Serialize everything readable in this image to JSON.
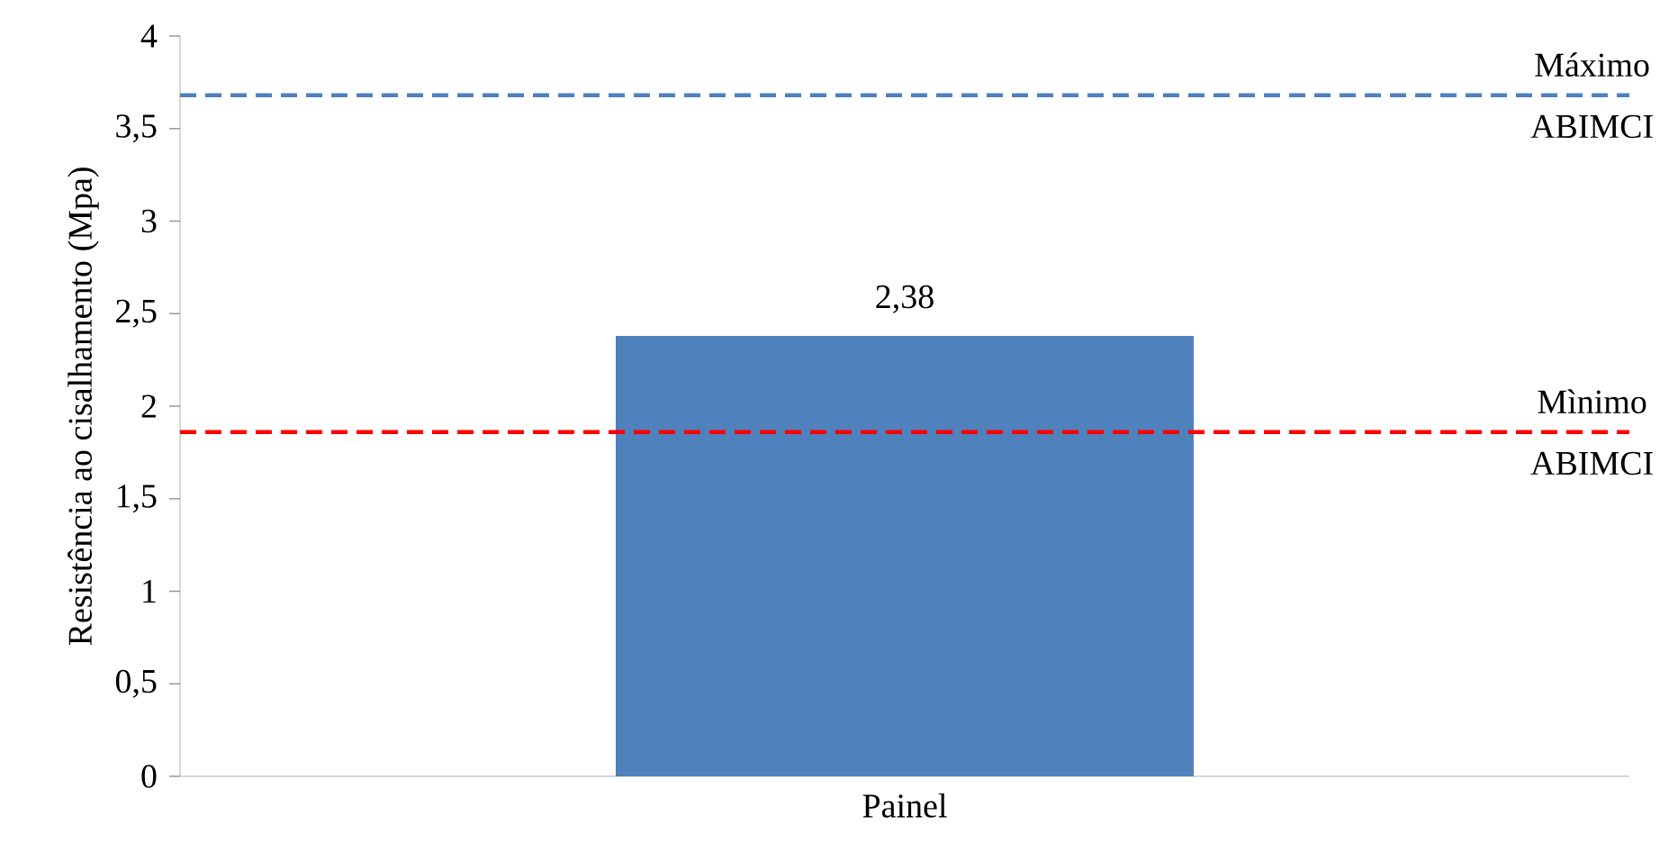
{
  "chart_data": {
    "type": "bar",
    "ylabel": "Resistência ao cisalhamento (Mpa)",
    "categories": [
      "Painel"
    ],
    "values": [
      2.38
    ],
    "value_labels": [
      "2,38"
    ],
    "color": "#4f81bd",
    "ylim": [
      0,
      4
    ],
    "yticks": [
      0,
      {
        "value": 0.5,
        "label": "0,5"
      },
      1,
      {
        "value": 1.5,
        "label": "1,5"
      },
      2,
      {
        "value": 2.5,
        "label": "2,5"
      },
      3,
      {
        "value": 3.5,
        "label": "3,5"
      },
      4
    ],
    "ref_lines": [
      {
        "axis": "y",
        "value": 3.68,
        "label": "Máximo ABIMCI",
        "color": "#4f81bd",
        "line_style": "dashed"
      },
      {
        "axis": "y",
        "value": 1.86,
        "label": "Mìnimo ABIMCI",
        "color": "#ff0000",
        "line_style": "dashed"
      }
    ]
  }
}
